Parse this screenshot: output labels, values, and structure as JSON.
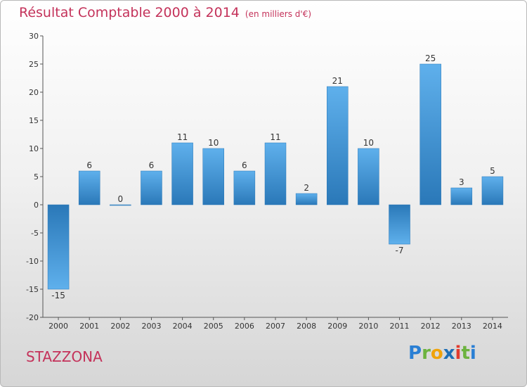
{
  "title": "Résultat Comptable 2000 à 2014",
  "unit_note": "(en milliers d'€)",
  "commune": "STAZZONA",
  "logo": {
    "letters": [
      "P",
      "r",
      "o",
      "x",
      "i",
      "t",
      "i"
    ],
    "colors": [
      "#2a7fd4",
      "#6cb33f",
      "#f0a30a",
      "#1f6fb5",
      "#e23b2e",
      "#6cb33f",
      "#2a7fd4"
    ]
  },
  "colors": {
    "bar_light": "#5fb0ec",
    "bar_dark": "#2a78b8",
    "title": "#c4325a"
  },
  "chart_data": {
    "type": "bar",
    "categories": [
      "2000",
      "2001",
      "2002",
      "2003",
      "2004",
      "2005",
      "2006",
      "2007",
      "2008",
      "2009",
      "2010",
      "2011",
      "2012",
      "2013",
      "2014"
    ],
    "values": [
      -15,
      6,
      0,
      6,
      11,
      10,
      6,
      11,
      2,
      21,
      10,
      -7,
      25,
      3,
      5
    ],
    "labels": [
      "-15",
      "6",
      "0",
      "6",
      "11",
      "10",
      "6",
      "11",
      "2",
      "21",
      "10",
      "-7",
      "25",
      "3",
      "5"
    ],
    "ylim": [
      -20,
      30
    ],
    "yticks": [
      -20,
      -15,
      -10,
      -5,
      0,
      5,
      10,
      15,
      20,
      25,
      30
    ],
    "grid": false
  }
}
